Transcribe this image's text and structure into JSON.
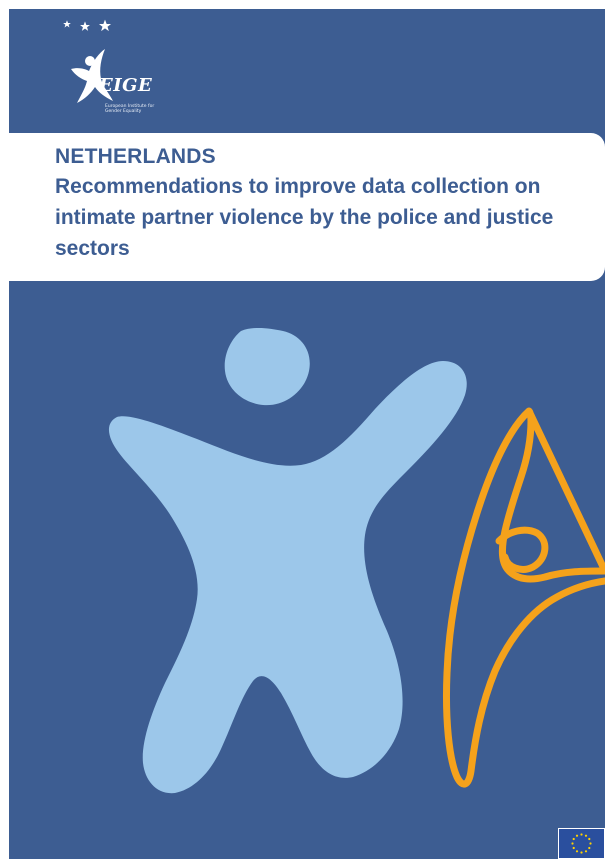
{
  "logo": {
    "wordmark": "EIGE",
    "tagline": "European Institute for Gender Equality",
    "icon": "eige-star-figure-icon"
  },
  "cover": {
    "country": "NETHERLANDS",
    "title": "Recommendations to improve data collection on intimate partner violence by the police and justice sectors"
  },
  "illustration": {
    "large_figure_icon": "light-blue-star-figure-icon",
    "outline_figure_icon": "orange-outline-figure-icon"
  },
  "footer": {
    "flag_icon": "eu-flag-icon"
  },
  "colors": {
    "background": "#3d5d92",
    "panel": "#ffffff",
    "title_text": "#3d5d92",
    "light_figure": "#9cc7ea",
    "outline_figure": "#f5a21b",
    "eu_flag": "#2a4f9e",
    "eu_stars": "#ffd200"
  }
}
